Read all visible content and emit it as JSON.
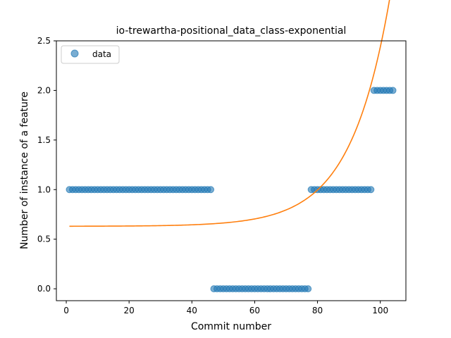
{
  "chart_data": {
    "type": "scatter",
    "title": "io-trewartha-positional_data_class-exponential",
    "xlabel": "Commit number",
    "ylabel": "Number of instance of a feature",
    "xlim": [
      -3.15,
      108.15
    ],
    "ylim": [
      -0.12,
      2.5
    ],
    "x_ticks": [
      0,
      20,
      40,
      60,
      80,
      100
    ],
    "y_ticks": [
      0.0,
      0.5,
      1.0,
      1.5,
      2.0,
      2.5
    ],
    "x_tick_labels": [
      "0",
      "20",
      "40",
      "60",
      "80",
      "100"
    ],
    "y_tick_labels": [
      "0.0",
      "0.5",
      "1.0",
      "1.5",
      "2.0",
      "2.5"
    ],
    "legend": {
      "position": "upper-left",
      "entries": [
        "data"
      ]
    },
    "grid": false,
    "series": [
      {
        "name": "data",
        "kind": "scatter",
        "color": "#1f77b4",
        "segments": [
          {
            "x_from": 1,
            "x_to": 46,
            "y": 1
          },
          {
            "x_from": 47,
            "x_to": 77,
            "y": 0
          },
          {
            "x_from": 78,
            "x_to": 97,
            "y": 1
          },
          {
            "x_from": 98,
            "x_to": 104,
            "y": 2
          }
        ]
      },
      {
        "name": "",
        "kind": "line",
        "color": "#ff7f0e",
        "model": "exponential",
        "formula": "y = 0.63 + 0.00067 * exp(0.0798 * (x - 1))",
        "x_range": [
          1,
          104
        ],
        "params": {
          "a": 0.63,
          "b": 0.00067,
          "c": 0.0798,
          "x0": 1
        }
      }
    ]
  }
}
